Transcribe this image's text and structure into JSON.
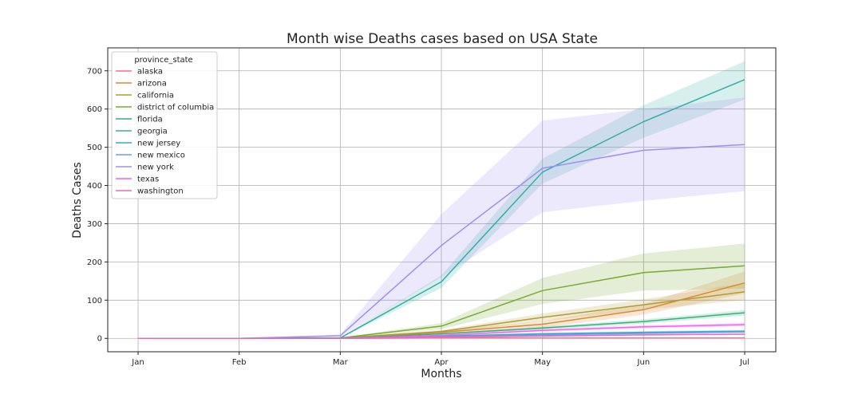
{
  "chart_data": {
    "type": "line",
    "title": "Month wise Deaths cases based on USA State",
    "xlabel": "Months",
    "ylabel": "Deaths Cases",
    "categories": [
      "Jan",
      "Feb",
      "Mar",
      "Apr",
      "May",
      "Jun",
      "Jul"
    ],
    "yticks": [
      0,
      100,
      200,
      300,
      400,
      500,
      600,
      700
    ],
    "ylim": [
      -35,
      760
    ],
    "grid": true,
    "legend_title": "province_state",
    "legend_position": "top-left",
    "series": [
      {
        "name": "alaska",
        "color": "#f77189",
        "values": [
          0,
          0,
          0,
          1,
          1,
          1,
          1
        ],
        "lower": [
          0,
          0,
          0,
          0,
          0,
          1,
          1
        ],
        "upper": [
          0,
          0,
          0,
          1,
          2,
          2,
          2
        ]
      },
      {
        "name": "arizona",
        "color": "#dc8932",
        "values": [
          0,
          0,
          0,
          16,
          37,
          75,
          145
        ],
        "lower": [
          0,
          0,
          0,
          12,
          28,
          62,
          118
        ],
        "upper": [
          0,
          0,
          0,
          20,
          45,
          90,
          175
        ]
      },
      {
        "name": "california",
        "color": "#ae9d31",
        "values": [
          0,
          0,
          1,
          18,
          55,
          88,
          122
        ],
        "lower": [
          0,
          0,
          0,
          14,
          45,
          75,
          100
        ],
        "upper": [
          0,
          0,
          2,
          22,
          65,
          102,
          145
        ]
      },
      {
        "name": "district of columbia",
        "color": "#77ab31",
        "values": [
          0,
          0,
          1,
          32,
          125,
          172,
          190
        ],
        "lower": [
          0,
          0,
          0,
          24,
          90,
          125,
          130
        ],
        "upper": [
          0,
          0,
          2,
          40,
          158,
          222,
          248
        ]
      },
      {
        "name": "florida",
        "color": "#33b07a",
        "values": [
          0,
          0,
          0,
          12,
          27,
          44,
          67
        ],
        "lower": [
          0,
          0,
          0,
          10,
          23,
          38,
          60
        ],
        "upper": [
          0,
          0,
          0,
          14,
          31,
          50,
          74
        ]
      },
      {
        "name": "georgia",
        "color": "#36ada4",
        "values": [
          0,
          0,
          1,
          148,
          435,
          567,
          677
        ],
        "lower": [
          0,
          0,
          0,
          132,
          405,
          525,
          625
        ],
        "upper": [
          0,
          0,
          2,
          165,
          470,
          610,
          725
        ]
      },
      {
        "name": "new jersey",
        "color": "#38a9c5",
        "values": [
          0,
          0,
          1,
          6,
          12,
          16,
          19
        ],
        "lower": [
          0,
          0,
          0,
          4,
          10,
          14,
          16
        ],
        "upper": [
          0,
          0,
          2,
          8,
          15,
          19,
          22
        ]
      },
      {
        "name": "new mexico",
        "color": "#6e9bf4",
        "values": [
          0,
          0,
          0,
          4,
          9,
          13,
          17
        ],
        "lower": [
          0,
          0,
          0,
          3,
          7,
          11,
          14
        ],
        "upper": [
          0,
          0,
          0,
          6,
          11,
          16,
          20
        ]
      },
      {
        "name": "new york",
        "color": "#9e8ff0",
        "values": [
          0,
          0,
          7,
          243,
          445,
          492,
          507
        ],
        "lower": [
          0,
          0,
          4,
          160,
          330,
          360,
          385
        ],
        "upper": [
          0,
          0,
          10,
          325,
          570,
          600,
          630
        ]
      },
      {
        "name": "texas",
        "color": "#f45ff0",
        "values": [
          0,
          0,
          0,
          8,
          21,
          30,
          36
        ],
        "lower": [
          0,
          0,
          0,
          6,
          17,
          26,
          31
        ],
        "upper": [
          0,
          0,
          0,
          10,
          25,
          35,
          41
        ]
      },
      {
        "name": "washington",
        "color": "#e96cb5",
        "values": [
          0,
          0,
          0,
          3,
          6,
          9,
          11
        ],
        "lower": [
          0,
          0,
          0,
          2,
          4,
          7,
          9
        ],
        "upper": [
          0,
          0,
          0,
          4,
          8,
          11,
          13
        ]
      }
    ]
  }
}
